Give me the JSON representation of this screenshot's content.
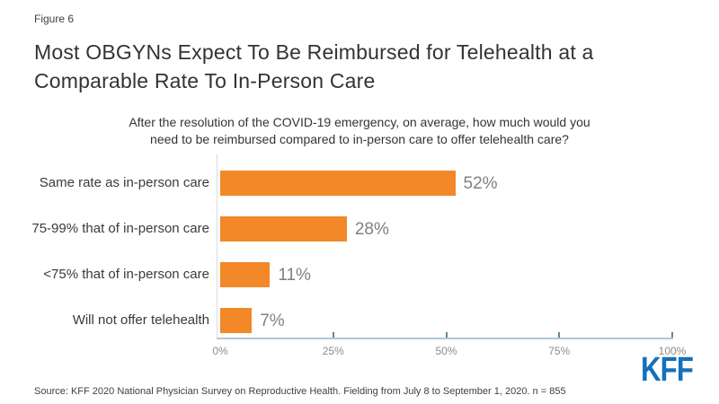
{
  "figure_label": "Figure 6",
  "title": "Most OBGYNs Expect To Be Reimbursed for Telehealth at a\nComparable Rate To In-Person Care",
  "subtitle": "After the resolution of the COVID-19 emergency, on average, how much would you\nneed to be reimbursed compared to in-person care to offer telehealth care?",
  "source": "Source: KFF 2020 National Physician Survey on Reproductive Health. Fielding from July 8 to September 1, 2020. n = 855",
  "logo_text": "KFF",
  "colors": {
    "bar_orange": "#F28827",
    "axis_line": "#B0C8D8",
    "tick_mark": "#5D87A4",
    "y_gridline": "#DCDCDC",
    "logo_blue": "#1271BC",
    "title_text": "#333333",
    "category_text": "#3A3A3A",
    "value_text": "#808080",
    "tick_text": "#8C8C8C"
  },
  "chart_data": {
    "type": "bar",
    "orientation": "horizontal",
    "title": "Most OBGYNs Expect To Be Reimbursed for Telehealth at a Comparable Rate To In-Person Care",
    "subtitle_question": "After the resolution of the COVID-19 emergency, on average, how much would you need to be reimbursed compared to in-person care to offer telehealth care?",
    "categories": [
      "Same rate as in-person care",
      "75-99% that of in-person care",
      "<75% that of in-person care",
      "Will not offer telehealth"
    ],
    "values": [
      52,
      28,
      11,
      7
    ],
    "value_labels": [
      "52%",
      "28%",
      "11%",
      "7%"
    ],
    "xlabel": "",
    "ylabel": "",
    "xlim": [
      0,
      100
    ],
    "x_tick_values": [
      0,
      25,
      50,
      75,
      100
    ],
    "x_tick_labels": [
      "0%",
      "25%",
      "50%",
      "75%",
      "100%"
    ],
    "grid": false,
    "legend": false,
    "bar_color": "#F28827"
  }
}
